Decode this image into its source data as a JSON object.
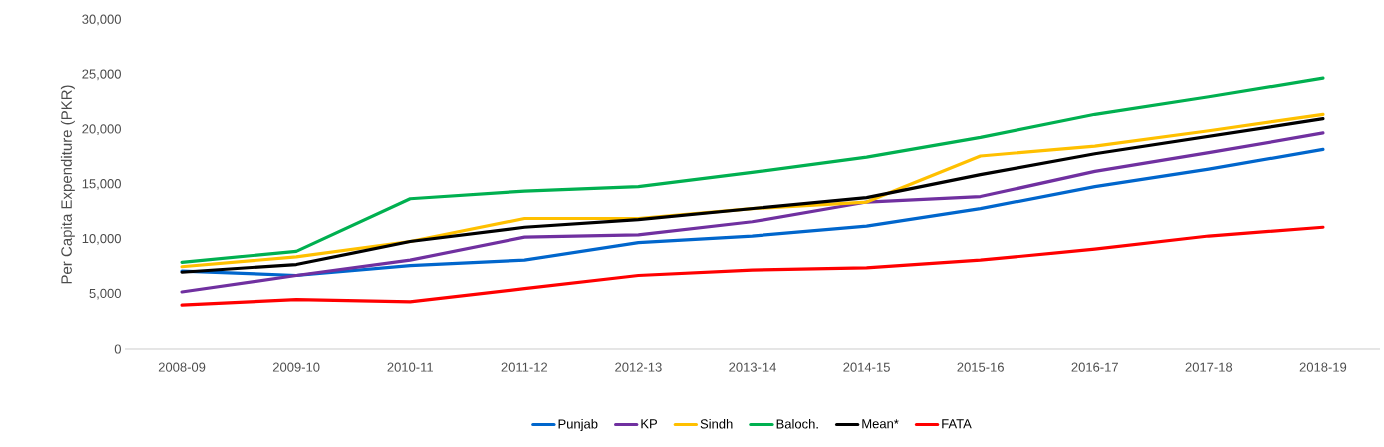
{
  "chart_data": {
    "type": "line",
    "ylabel": "Per Capita Expenditure (PKR)",
    "categories": [
      "2008-09",
      "2009-10",
      "2010-11",
      "2011-12",
      "2012-13",
      "2013-14",
      "2014-15",
      "2015-16",
      "2016-17",
      "2017-18",
      "2018-19"
    ],
    "series": [
      {
        "name": "Punjab",
        "color": "#0066cc",
        "values": [
          7100,
          6700,
          7600,
          8100,
          9700,
          10300,
          11200,
          12800,
          14800,
          16400,
          18200
        ]
      },
      {
        "name": "KP",
        "color": "#7030a0",
        "values": [
          5200,
          6700,
          8100,
          10200,
          10400,
          11600,
          13400,
          13900,
          16200,
          17900,
          19700
        ]
      },
      {
        "name": "Sindh",
        "color": "#ffc000",
        "values": [
          7500,
          8400,
          9800,
          11900,
          11900,
          12800,
          13400,
          17600,
          18500,
          19900,
          21400
        ]
      },
      {
        "name": "Baloch.",
        "color": "#00b050",
        "values": [
          7900,
          8900,
          13700,
          14400,
          14800,
          16100,
          17500,
          19300,
          21400,
          23000,
          24700
        ]
      },
      {
        "name": "Mean*",
        "color": "#000000",
        "values": [
          7000,
          7700,
          9800,
          11100,
          11800,
          12800,
          13800,
          15900,
          17800,
          19400,
          21000
        ]
      },
      {
        "name": "FATA",
        "color": "#ff0000",
        "values": [
          4000,
          4500,
          4300,
          5500,
          6700,
          7200,
          7400,
          8100,
          9100,
          10300,
          11100
        ]
      }
    ],
    "ylim": [
      0,
      30000
    ],
    "yticks": [
      0,
      {
        "value": 5000,
        "label": "5,000"
      },
      {
        "value": 10000,
        "label": "10,000"
      },
      {
        "value": 15000,
        "label": "15,000"
      },
      {
        "value": 20000,
        "label": "20,000"
      },
      {
        "value": 25000,
        "label": "25,000"
      },
      {
        "value": 30000,
        "label": "30,000"
      }
    ],
    "grid": false,
    "legend": "bottom",
    "marker": "none",
    "line_style": "solid"
  }
}
